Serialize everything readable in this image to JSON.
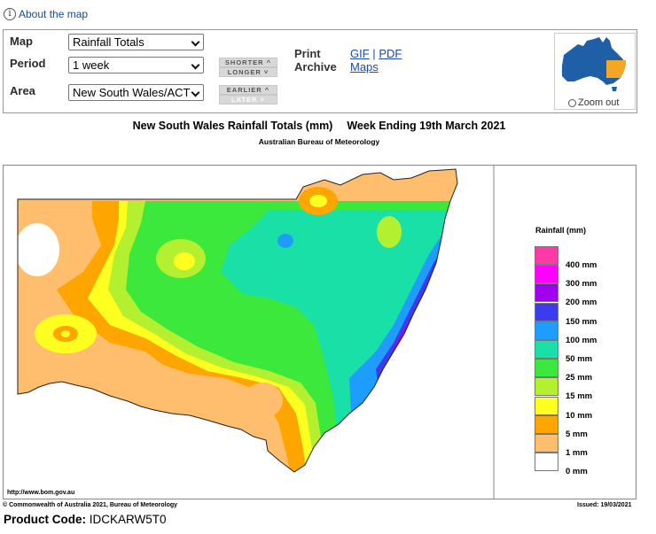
{
  "about": {
    "icon": "info-icon",
    "label": "About the map"
  },
  "controls": {
    "map_label": "Map",
    "map_value": "Rainfall Totals",
    "period_label": "Period",
    "period_value": "1 week",
    "area_label": "Area",
    "area_value": "New South Wales/ACT",
    "shorter": "SHORTER",
    "longer": "LONGER",
    "earlier": "EARLIER",
    "later": "LATER"
  },
  "print": {
    "line1": "Print",
    "line2": "Archive",
    "gif": "GIF",
    "sep": "|",
    "pdf": "PDF",
    "maps": "Maps"
  },
  "minimap": {
    "zoom_label": "Zoom out",
    "land_color": "#1f5fa8",
    "highlight_color": "#f5a623"
  },
  "map": {
    "title": "New South Wales Rainfall Totals (mm)",
    "title_period": "Week Ending 19th March 2021",
    "subtitle": "Australian Bureau of Meteorology",
    "url": "http://www.bom.gov.au",
    "copyright": "© Commonwealth of Australia 2021, Bureau of Meteorology",
    "issued": "Issued: 19/03/2021"
  },
  "legend": {
    "title": "Rainfall (mm)",
    "items": [
      {
        "label": "400 mm",
        "color": "#ff3aa6"
      },
      {
        "label": "300 mm",
        "color": "#ff00ff"
      },
      {
        "label": "200 mm",
        "color": "#a000ee"
      },
      {
        "label": "150 mm",
        "color": "#3c3cee"
      },
      {
        "label": "100 mm",
        "color": "#1e9cff"
      },
      {
        "label": "50 mm",
        "color": "#19e0a6"
      },
      {
        "label": "25 mm",
        "color": "#3ce83c"
      },
      {
        "label": "15 mm",
        "color": "#b2f030"
      },
      {
        "label": "10 mm",
        "color": "#ffff20"
      },
      {
        "label": "5 mm",
        "color": "#ffa500"
      },
      {
        "label": "1 mm",
        "color": "#ffbe6e"
      },
      {
        "label": "0 mm",
        "color": "#ffffff"
      }
    ]
  },
  "product": {
    "label": "Product Code:",
    "code": "IDCKARW5T0"
  }
}
